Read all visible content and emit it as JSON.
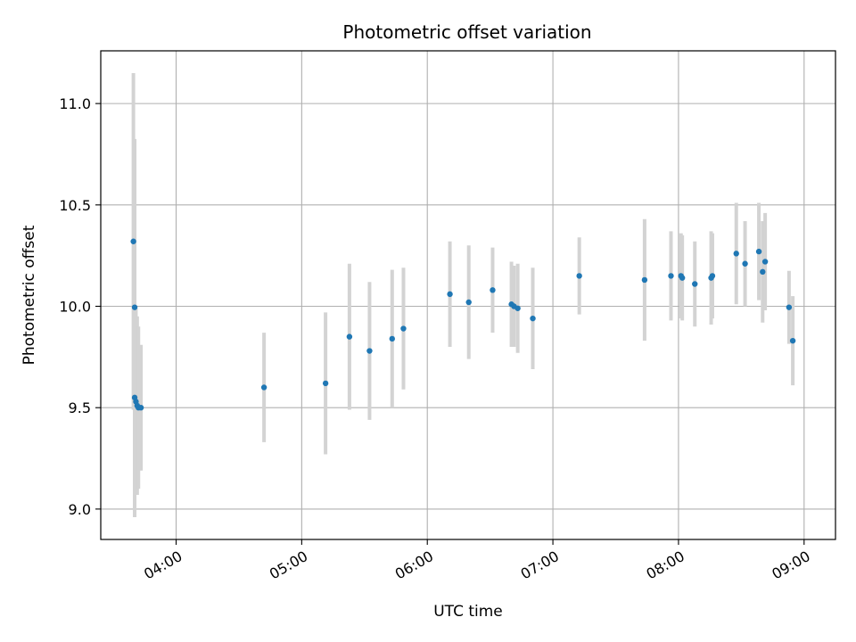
{
  "chart_data": {
    "type": "scatter",
    "title": "Photometric offset variation",
    "xlabel": "UTC time",
    "ylabel": "Photometric offset",
    "x_unit": "UTC hours",
    "xlim": [
      3.4,
      9.25
    ],
    "ylim": [
      8.85,
      11.26
    ],
    "grid": true,
    "x_ticks": [
      {
        "value": 4,
        "label": "04:00"
      },
      {
        "value": 5,
        "label": "05:00"
      },
      {
        "value": 6,
        "label": "06:00"
      },
      {
        "value": 7,
        "label": "07:00"
      },
      {
        "value": 8,
        "label": "08:00"
      },
      {
        "value": 9,
        "label": "09:00"
      }
    ],
    "y_ticks": [
      {
        "value": 9.0,
        "label": "9.0"
      },
      {
        "value": 9.5,
        "label": "9.5"
      },
      {
        "value": 10.0,
        "label": "10.0"
      },
      {
        "value": 10.5,
        "label": "10.5"
      },
      {
        "value": 11.0,
        "label": "11.0"
      }
    ],
    "colors": {
      "point": "#1f77b4",
      "errorbar": "#d3d3d3",
      "grid": "#b0b0b0",
      "axes": "#000000"
    },
    "points": [
      {
        "x": 3.66,
        "y": 10.32,
        "yerr": 0.83
      },
      {
        "x": 3.67,
        "y": 9.995,
        "yerr": 0.83
      },
      {
        "x": 3.67,
        "y": 9.55,
        "yerr": 0.59
      },
      {
        "x": 3.68,
        "y": 9.53,
        "yerr": 0.46
      },
      {
        "x": 3.69,
        "y": 9.51,
        "yerr": 0.44
      },
      {
        "x": 3.7,
        "y": 9.5,
        "yerr": 0.4
      },
      {
        "x": 3.72,
        "y": 9.5,
        "yerr": 0.31
      },
      {
        "x": 4.7,
        "y": 9.6,
        "yerr": 0.27
      },
      {
        "x": 5.19,
        "y": 9.62,
        "yerr": 0.35
      },
      {
        "x": 5.38,
        "y": 9.85,
        "yerr": 0.36
      },
      {
        "x": 5.54,
        "y": 9.78,
        "yerr": 0.34
      },
      {
        "x": 5.72,
        "y": 9.84,
        "yerr": 0.34
      },
      {
        "x": 5.81,
        "y": 9.89,
        "yerr": 0.3
      },
      {
        "x": 6.18,
        "y": 10.06,
        "yerr": 0.26
      },
      {
        "x": 6.33,
        "y": 10.02,
        "yerr": 0.28
      },
      {
        "x": 6.52,
        "y": 10.08,
        "yerr": 0.21
      },
      {
        "x": 6.67,
        "y": 10.01,
        "yerr": 0.21
      },
      {
        "x": 6.69,
        "y": 10.0,
        "yerr": 0.2
      },
      {
        "x": 6.72,
        "y": 9.99,
        "yerr": 0.22
      },
      {
        "x": 6.84,
        "y": 9.94,
        "yerr": 0.25
      },
      {
        "x": 7.21,
        "y": 10.15,
        "yerr": 0.19
      },
      {
        "x": 7.73,
        "y": 10.13,
        "yerr": 0.3
      },
      {
        "x": 7.94,
        "y": 10.15,
        "yerr": 0.22
      },
      {
        "x": 8.02,
        "y": 10.15,
        "yerr": 0.21
      },
      {
        "x": 8.03,
        "y": 10.14,
        "yerr": 0.21
      },
      {
        "x": 8.13,
        "y": 10.11,
        "yerr": 0.21
      },
      {
        "x": 8.26,
        "y": 10.14,
        "yerr": 0.23
      },
      {
        "x": 8.27,
        "y": 10.15,
        "yerr": 0.21
      },
      {
        "x": 8.46,
        "y": 10.26,
        "yerr": 0.25
      },
      {
        "x": 8.53,
        "y": 10.21,
        "yerr": 0.21
      },
      {
        "x": 8.64,
        "y": 10.27,
        "yerr": 0.24
      },
      {
        "x": 8.67,
        "y": 10.17,
        "yerr": 0.25
      },
      {
        "x": 8.69,
        "y": 10.22,
        "yerr": 0.24
      },
      {
        "x": 8.88,
        "y": 9.995,
        "yerr": 0.18
      },
      {
        "x": 8.91,
        "y": 9.83,
        "yerr": 0.22
      }
    ]
  }
}
